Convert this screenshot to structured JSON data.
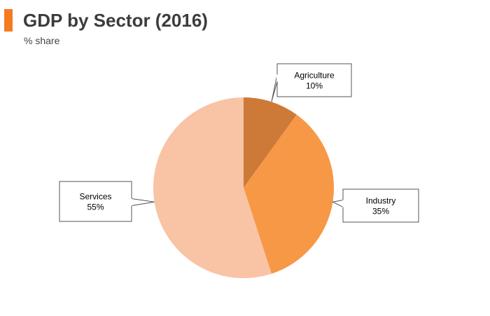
{
  "title": "GDP by Sector (2016)",
  "subtitle": "% share",
  "colors": {
    "accent": "#f47b20",
    "agriculture": "#cd7a38",
    "industry": "#f79846",
    "services": "#f9c3a5"
  },
  "chart_data": {
    "type": "pie",
    "title": "GDP by Sector (2016)",
    "subtitle": "% share",
    "slices": [
      {
        "label": "Agriculture",
        "value": 10,
        "value_label": "10%",
        "color": "#cd7a38"
      },
      {
        "label": "Industry",
        "value": 35,
        "value_label": "35%",
        "color": "#f79846"
      },
      {
        "label": "Services",
        "value": 55,
        "value_label": "55%",
        "color": "#f9c3a5"
      }
    ],
    "start_angle": "12 o'clock",
    "direction": "clockwise",
    "legend": "none",
    "labels": "callout boxes"
  }
}
